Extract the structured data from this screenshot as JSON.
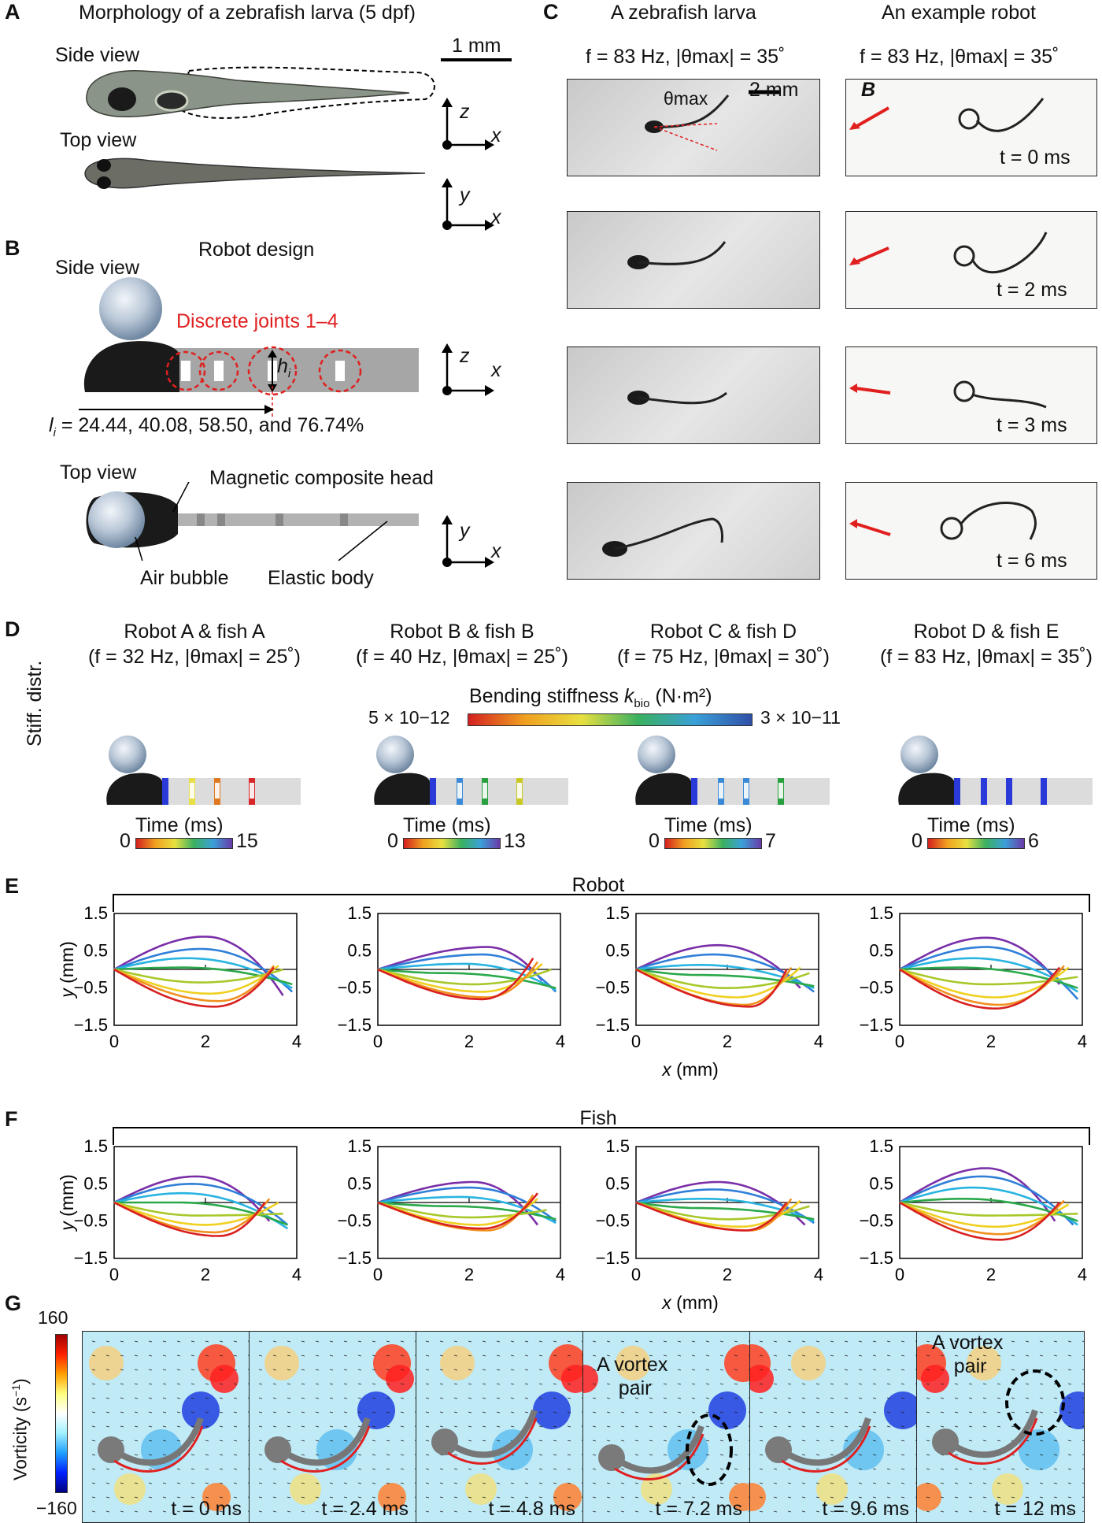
{
  "panel_A": {
    "label": "A",
    "title": "Morphology of a zebrafish larva (5 dpf)",
    "side_view": "Side view",
    "top_view": "Top view",
    "scale": "1 mm",
    "axes_side": [
      "z",
      "x"
    ],
    "axes_top": [
      "y",
      "x"
    ]
  },
  "panel_B": {
    "label": "B",
    "title": "Robot design",
    "side_view": "Side view",
    "joints": "Discrete joints 1–4",
    "h": "h",
    "h_sub": "i",
    "l_prefix": "l",
    "l_sub": "i",
    "l_text": " = 24.44, 40.08, 58.50, and 76.74%",
    "top_view": "Top view",
    "head_label": "Magnetic composite head",
    "bubble_label": "Air bubble",
    "body_label": "Elastic body",
    "axes_side": [
      "z",
      "x"
    ],
    "axes_top": [
      "y",
      "x"
    ]
  },
  "panel_C": {
    "label": "C",
    "col1": "A zebrafish larva",
    "col2": "An example robot",
    "param": "f = 83 Hz, |θmax| = 35˚",
    "theta": "θmax",
    "scale": "2 mm",
    "field": "B",
    "times": [
      "t = 0  ms",
      "t = 2 ms",
      "t = 3 ms",
      "t = 6 ms"
    ]
  },
  "panel_D": {
    "label": "D",
    "side_label": "Stiff. distr.",
    "colorbar_title": "Bending stiffness kbio (N·m²)",
    "colorbar_min": "5 × 10−12",
    "colorbar_max": "3 × 10−11",
    "robots": [
      {
        "title": "Robot A & fish A",
        "param": "(f = 32 Hz, |θmax| = 25˚)",
        "time_label": "Time (ms)",
        "t0": "0",
        "t1": "15",
        "joints": [
          "#2a3ad8",
          "#e8e046",
          "#e07820",
          "#d8282a"
        ]
      },
      {
        "title": "Robot B & fish B",
        "param": "(f = 40 Hz, |θmax| = 25˚)",
        "time_label": "Time (ms)",
        "t0": "0",
        "t1": "13",
        "joints": [
          "#2a3ad8",
          "#3a8ad8",
          "#28a040",
          "#c8c820"
        ]
      },
      {
        "title": "Robot C & fish D",
        "param": "(f = 75 Hz, |θmax| = 30˚)",
        "time_label": "Time (ms)",
        "t0": "0",
        "t1": "7",
        "joints": [
          "#2a3ad8",
          "#3a8ad8",
          "#3a8ad8",
          "#28a040"
        ]
      },
      {
        "title": "Robot D & fish E",
        "param": "(f = 83 Hz, |θmax| = 35˚)",
        "time_label": "Time (ms)",
        "t0": "0",
        "t1": "6",
        "joints": [
          "#2a3ad8",
          "#2a3ad8",
          "#2a3ad8",
          "#2a3ad8"
        ]
      }
    ]
  },
  "panel_E": {
    "label": "E",
    "group": "Robot"
  },
  "panel_F": {
    "label": "F",
    "group": "Fish"
  },
  "panel_G": {
    "label": "G",
    "colorbar_title": "Vorticity (s−1)",
    "cmax": "160",
    "cmin": "−160",
    "frames": [
      "t = 0 ms",
      "t = 2.4 ms",
      "t = 4.8 ms",
      "t = 7.2 ms",
      "t = 9.6 ms",
      "t = 12 ms"
    ],
    "annotation1": "A vortex pair",
    "annotation2": "A vortex pair"
  },
  "chart_data": [
    {
      "type": "line",
      "group": "Robot",
      "xlabel": "x (mm)",
      "ylabel": "y (mm)",
      "xlim": [
        0,
        4
      ],
      "ylim": [
        -1.5,
        1.5
      ],
      "xticks": [
        "0",
        "2",
        "4"
      ],
      "yticks": [
        "1.5",
        "0.5",
        "−0.5",
        "−1.5"
      ],
      "series": [
        {
          "peak": 0.88,
          "xp": 2.0,
          "end": [
            3.7,
            -0.7
          ]
        },
        {
          "peak": 0.55,
          "xp": 1.9,
          "end": [
            3.9,
            -0.6
          ]
        },
        {
          "peak": 0.3,
          "xp": 1.6,
          "end": [
            3.9,
            -0.5
          ]
        },
        {
          "peak": 0.05,
          "xp": 1.5,
          "end": [
            3.9,
            -0.4
          ]
        },
        {
          "peak": -0.35,
          "xp": 1.9,
          "end": [
            3.7,
            0.0
          ]
        },
        {
          "peak": -0.65,
          "xp": 2.1,
          "end": [
            3.6,
            0.1
          ]
        },
        {
          "peak": -0.85,
          "xp": 2.3,
          "end": [
            3.5,
            0.1
          ]
        },
        {
          "peak": -1.0,
          "xp": 2.2,
          "end": [
            3.5,
            0.05
          ]
        }
      ]
    },
    {
      "type": "line",
      "group": "Robot",
      "xlabel": "x (mm)",
      "ylabel": "y (mm)",
      "xlim": [
        0,
        4
      ],
      "ylim": [
        -1.5,
        1.5
      ],
      "xticks": [
        "0",
        "2",
        "4"
      ],
      "yticks": [
        "1.5",
        "0.5",
        "−0.5",
        "−1.5"
      ],
      "series": [
        {
          "peak": 0.6,
          "xp": 2.4,
          "end": [
            3.6,
            -0.3
          ]
        },
        {
          "peak": 0.4,
          "xp": 2.3,
          "end": [
            3.9,
            -0.6
          ]
        },
        {
          "peak": 0.15,
          "xp": 1.9,
          "end": [
            3.9,
            -0.55
          ]
        },
        {
          "peak": -0.1,
          "xp": 1.5,
          "end": [
            3.9,
            -0.5
          ]
        },
        {
          "peak": -0.4,
          "xp": 2.1,
          "end": [
            3.8,
            0.0
          ]
        },
        {
          "peak": -0.6,
          "xp": 2.3,
          "end": [
            3.6,
            0.15
          ]
        },
        {
          "peak": -0.75,
          "xp": 2.4,
          "end": [
            3.5,
            0.2
          ]
        },
        {
          "peak": -0.8,
          "xp": 2.3,
          "end": [
            3.4,
            0.3
          ]
        }
      ]
    },
    {
      "type": "line",
      "group": "Robot",
      "xlabel": "x (mm)",
      "ylabel": "y (mm)",
      "xlim": [
        0,
        4
      ],
      "ylim": [
        -1.5,
        1.5
      ],
      "xticks": [
        "0",
        "2",
        "4"
      ],
      "yticks": [
        "1.5",
        "0.5",
        "−0.5",
        "−1.5"
      ],
      "series": [
        {
          "peak": 0.65,
          "xp": 1.8,
          "end": [
            3.6,
            -0.5
          ]
        },
        {
          "peak": 0.4,
          "xp": 1.7,
          "end": [
            3.9,
            -0.6
          ]
        },
        {
          "peak": 0.12,
          "xp": 1.4,
          "end": [
            3.9,
            -0.5
          ]
        },
        {
          "peak": -0.15,
          "xp": 1.4,
          "end": [
            3.9,
            -0.45
          ]
        },
        {
          "peak": -0.5,
          "xp": 2.0,
          "end": [
            3.8,
            -0.1
          ]
        },
        {
          "peak": -0.75,
          "xp": 2.2,
          "end": [
            3.6,
            0.05
          ]
        },
        {
          "peak": -0.95,
          "xp": 2.4,
          "end": [
            3.4,
            0.05
          ]
        },
        {
          "peak": -1.0,
          "xp": 2.5,
          "end": [
            3.3,
            0.0
          ]
        }
      ]
    },
    {
      "type": "line",
      "group": "Robot",
      "xlabel": "x (mm)",
      "ylabel": "y (mm)",
      "xlim": [
        0,
        4
      ],
      "ylim": [
        -1.5,
        1.5
      ],
      "xticks": [
        "0",
        "2",
        "4"
      ],
      "yticks": [
        "1.5",
        "0.5",
        "−0.5",
        "−1.5"
      ],
      "series": [
        {
          "peak": 0.85,
          "xp": 1.9,
          "end": [
            3.5,
            -0.4
          ]
        },
        {
          "peak": 0.6,
          "xp": 1.9,
          "end": [
            3.9,
            -0.8
          ]
        },
        {
          "peak": 0.3,
          "xp": 1.6,
          "end": [
            3.9,
            -0.6
          ]
        },
        {
          "peak": 0.05,
          "xp": 1.3,
          "end": [
            3.9,
            -0.5
          ]
        },
        {
          "peak": -0.4,
          "xp": 1.9,
          "end": [
            3.9,
            -0.2
          ]
        },
        {
          "peak": -0.75,
          "xp": 2.1,
          "end": [
            3.7,
            0.05
          ]
        },
        {
          "peak": -0.95,
          "xp": 2.2,
          "end": [
            3.6,
            0.1
          ]
        },
        {
          "peak": -1.05,
          "xp": 2.1,
          "end": [
            3.5,
            0.05
          ]
        }
      ]
    },
    {
      "type": "line",
      "group": "Fish",
      "xlabel": "x (mm)",
      "ylabel": "y (mm)",
      "xlim": [
        0,
        4
      ],
      "ylim": [
        -1.5,
        1.5
      ],
      "xticks": [
        "0",
        "2",
        "4"
      ],
      "yticks": [
        "1.5",
        "0.5",
        "−0.5",
        "−1.5"
      ],
      "series": [
        {
          "peak": 0.7,
          "xp": 1.8,
          "end": [
            3.4,
            -0.5
          ]
        },
        {
          "peak": 0.5,
          "xp": 1.7,
          "end": [
            3.8,
            -0.6
          ]
        },
        {
          "peak": 0.25,
          "xp": 1.5,
          "end": [
            3.8,
            -0.7
          ]
        },
        {
          "peak": 0.0,
          "xp": 1.4,
          "end": [
            3.8,
            -0.6
          ]
        },
        {
          "peak": -0.35,
          "xp": 1.8,
          "end": [
            3.7,
            -0.3
          ]
        },
        {
          "peak": -0.6,
          "xp": 2.0,
          "end": [
            3.6,
            0.0
          ]
        },
        {
          "peak": -0.8,
          "xp": 2.2,
          "end": [
            3.4,
            0.1
          ]
        },
        {
          "peak": -0.9,
          "xp": 2.3,
          "end": [
            3.3,
            0.0
          ]
        }
      ]
    },
    {
      "type": "line",
      "group": "Fish",
      "xlabel": "x (mm)",
      "ylabel": "y (mm)",
      "xlim": [
        0,
        4
      ],
      "ylim": [
        -1.5,
        1.5
      ],
      "xticks": [
        "0",
        "2",
        "4"
      ],
      "yticks": [
        "1.5",
        "0.5",
        "−0.5",
        "−1.5"
      ],
      "series": [
        {
          "peak": 0.55,
          "xp": 2.1,
          "end": [
            3.5,
            -0.6
          ]
        },
        {
          "peak": 0.4,
          "xp": 2.0,
          "end": [
            3.9,
            -0.5
          ]
        },
        {
          "peak": 0.15,
          "xp": 1.8,
          "end": [
            3.9,
            -0.55
          ]
        },
        {
          "peak": -0.1,
          "xp": 1.6,
          "end": [
            3.9,
            -0.45
          ]
        },
        {
          "peak": -0.4,
          "xp": 2.0,
          "end": [
            3.7,
            -0.2
          ]
        },
        {
          "peak": -0.6,
          "xp": 2.2,
          "end": [
            3.5,
            0.1
          ]
        },
        {
          "peak": -0.75,
          "xp": 2.4,
          "end": [
            3.4,
            0.2
          ]
        },
        {
          "peak": -0.7,
          "xp": 2.3,
          "end": [
            3.5,
            0.25
          ]
        }
      ]
    },
    {
      "type": "line",
      "group": "Fish",
      "xlabel": "x (mm)",
      "ylabel": "y (mm)",
      "xlim": [
        0,
        4
      ],
      "ylim": [
        -1.5,
        1.5
      ],
      "xticks": [
        "0",
        "2",
        "4"
      ],
      "yticks": [
        "1.5",
        "0.5",
        "−0.5",
        "−1.5"
      ],
      "series": [
        {
          "peak": 0.55,
          "xp": 1.8,
          "end": [
            3.7,
            -0.6
          ]
        },
        {
          "peak": 0.35,
          "xp": 1.7,
          "end": [
            3.9,
            -0.55
          ]
        },
        {
          "peak": 0.1,
          "xp": 1.5,
          "end": [
            3.9,
            -0.5
          ]
        },
        {
          "peak": -0.15,
          "xp": 1.4,
          "end": [
            3.9,
            -0.45
          ]
        },
        {
          "peak": -0.45,
          "xp": 2.0,
          "end": [
            3.8,
            -0.1
          ]
        },
        {
          "peak": -0.65,
          "xp": 2.3,
          "end": [
            3.6,
            0.05
          ]
        },
        {
          "peak": -0.75,
          "xp": 2.5,
          "end": [
            3.4,
            0.1
          ]
        },
        {
          "peak": -0.75,
          "xp": 2.4,
          "end": [
            3.3,
            0.0
          ]
        }
      ]
    },
    {
      "type": "line",
      "group": "Fish",
      "xlabel": "x (mm)",
      "ylabel": "y (mm)",
      "xlim": [
        0,
        4
      ],
      "ylim": [
        -1.5,
        1.5
      ],
      "xticks": [
        "0",
        "2",
        "4"
      ],
      "yticks": [
        "1.5",
        "0.5",
        "−0.5",
        "−1.5"
      ],
      "series": [
        {
          "peak": 0.92,
          "xp": 1.9,
          "end": [
            3.4,
            -0.5
          ]
        },
        {
          "peak": 0.7,
          "xp": 1.8,
          "end": [
            3.8,
            -0.6
          ]
        },
        {
          "peak": 0.4,
          "xp": 1.6,
          "end": [
            3.9,
            -0.6
          ]
        },
        {
          "peak": 0.1,
          "xp": 1.4,
          "end": [
            3.9,
            -0.5
          ]
        },
        {
          "peak": -0.35,
          "xp": 1.9,
          "end": [
            3.9,
            -0.3
          ]
        },
        {
          "peak": -0.65,
          "xp": 2.1,
          "end": [
            3.7,
            -0.05
          ]
        },
        {
          "peak": -0.85,
          "xp": 2.2,
          "end": [
            3.6,
            0.05
          ]
        },
        {
          "peak": -1.0,
          "xp": 2.2,
          "end": [
            3.5,
            0.0
          ]
        }
      ]
    }
  ],
  "colors": {
    "accent_red": "#e0201f",
    "series": [
      "#7a2fa8",
      "#2f7fd8",
      "#28b4e0",
      "#2aa84a",
      "#a8c82a",
      "#f0d020",
      "#f09020",
      "#d82020"
    ]
  }
}
